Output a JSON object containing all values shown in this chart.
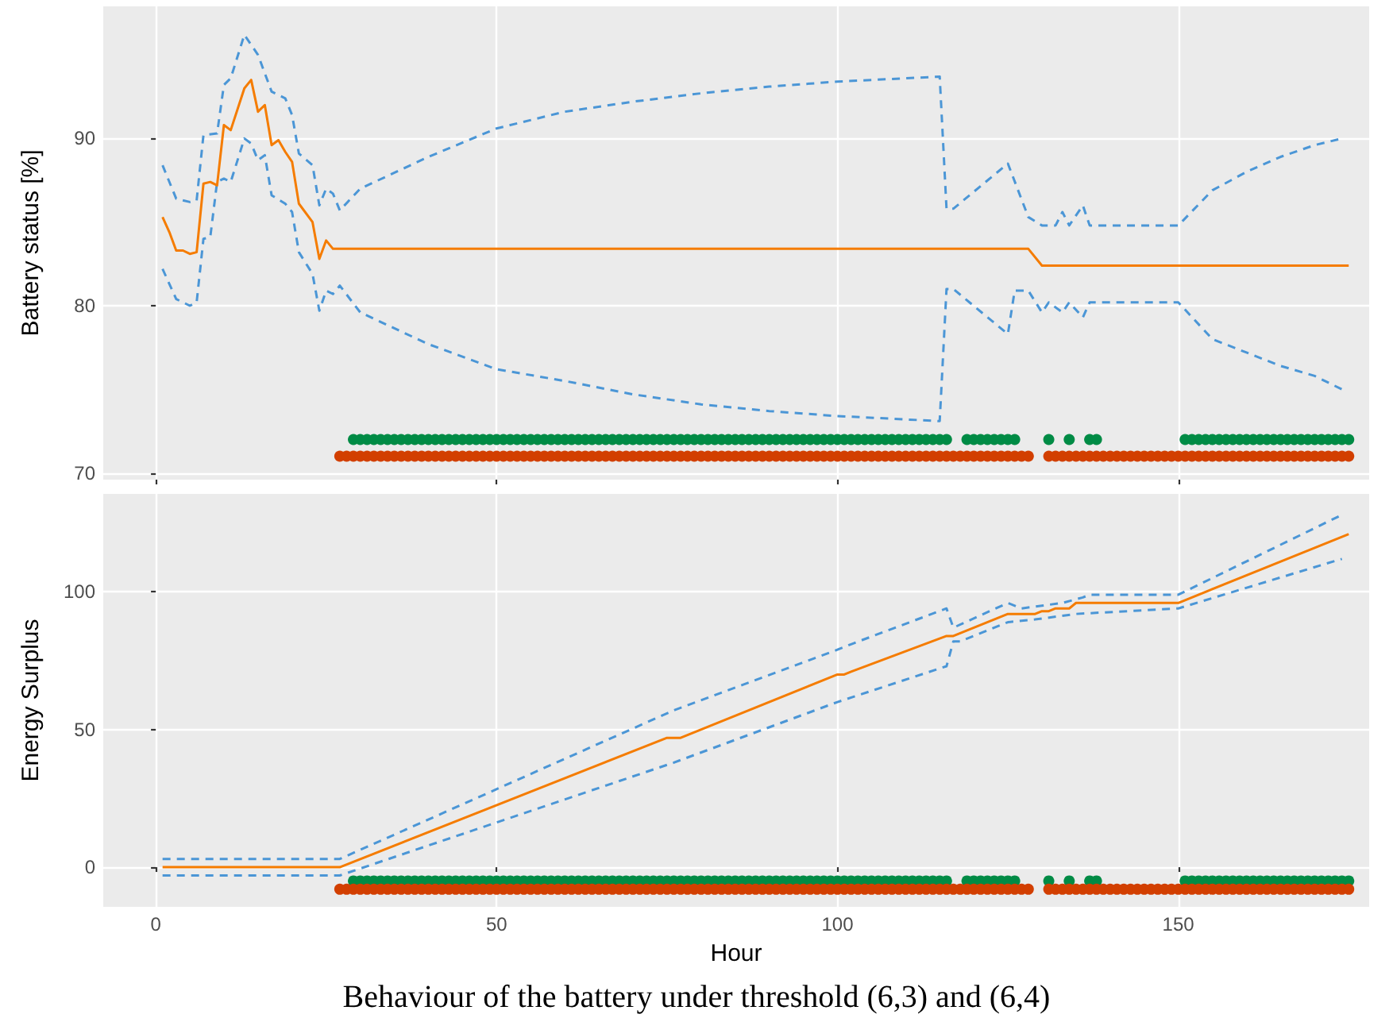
{
  "chart_data": [
    {
      "type": "line",
      "ylabel": "Battery status [%]",
      "xlim": [
        -7.7,
        178
      ],
      "ylim": [
        69.6,
        97.9
      ],
      "xticks": [
        {
          "value": 0,
          "label": null
        },
        {
          "value": 50,
          "label": null
        },
        {
          "value": 100,
          "label": null
        },
        {
          "value": 150,
          "label": null
        }
      ],
      "yticks": [
        70,
        80,
        90
      ],
      "tick_labels": "y",
      "grid": true,
      "series": [
        {
          "color": "#4b96d6",
          "line_style": "dashed",
          "x": [
            1,
            3,
            5,
            6,
            7,
            9,
            10,
            11,
            13,
            15,
            17,
            19,
            20,
            21,
            23,
            24,
            25,
            26,
            27,
            30,
            40,
            50,
            60,
            70,
            80,
            90,
            100,
            110,
            115,
            116,
            117,
            125,
            128,
            130,
            132,
            133,
            134,
            136,
            137,
            150,
            155,
            160,
            165,
            170,
            174
          ],
          "values": [
            88.4,
            86.4,
            86.2,
            86.3,
            90.2,
            90.3,
            93.2,
            93.6,
            96.2,
            95.0,
            92.8,
            92.4,
            91.4,
            89.1,
            88.4,
            86.0,
            87.0,
            86.7,
            85.7,
            87.0,
            88.9,
            90.6,
            91.6,
            92.2,
            92.7,
            93.1,
            93.4,
            93.6,
            93.7,
            85.8,
            85.8,
            88.5,
            85.3,
            84.8,
            84.8,
            85.6,
            84.8,
            86.0,
            84.8,
            84.8,
            86.9,
            88.0,
            88.9,
            89.6,
            90.0
          ]
        },
        {
          "color": "#4b96d6",
          "line_style": "dashed",
          "x": [
            1,
            3,
            5,
            6,
            7,
            8,
            9,
            10,
            11,
            13,
            14,
            15,
            16,
            17,
            19,
            20,
            21,
            23,
            24,
            25,
            26,
            27,
            30,
            40,
            50,
            60,
            70,
            80,
            90,
            100,
            110,
            115,
            116,
            117,
            125,
            126,
            128,
            130,
            131,
            133,
            134,
            136,
            137,
            150,
            155,
            160,
            165,
            170,
            174
          ],
          "values": [
            82.2,
            80.4,
            80.0,
            80.2,
            84.0,
            84.1,
            87.4,
            87.6,
            87.4,
            90.0,
            89.7,
            88.7,
            89.0,
            86.6,
            86.1,
            85.6,
            83.2,
            81.9,
            79.7,
            80.9,
            80.7,
            81.2,
            79.6,
            77.7,
            76.2,
            75.5,
            74.7,
            74.1,
            73.7,
            73.4,
            73.2,
            73.1,
            81.0,
            81.0,
            78.3,
            80.9,
            80.9,
            79.6,
            80.2,
            79.6,
            80.2,
            79.3,
            80.2,
            80.2,
            78.0,
            77.2,
            76.4,
            75.8,
            75.0
          ]
        },
        {
          "color": "#f57c00",
          "line_style": "solid",
          "x": [
            1,
            2,
            3,
            4,
            5,
            6,
            7,
            8,
            9,
            10,
            11,
            13,
            14,
            15,
            16,
            17,
            18,
            19,
            20,
            21,
            23,
            24,
            25,
            26,
            128,
            130,
            175
          ],
          "values": [
            85.3,
            84.4,
            83.3,
            83.3,
            83.1,
            83.2,
            87.3,
            87.4,
            87.2,
            90.8,
            90.5,
            93.0,
            93.5,
            91.6,
            92.0,
            89.6,
            89.9,
            89.2,
            88.6,
            86.1,
            85.0,
            82.8,
            83.9,
            83.4,
            83.4,
            82.4,
            82.4
          ]
        },
        {
          "type": "scatter",
          "marker": "circle",
          "color": "#008b45",
          "x": [
            29,
            30,
            31,
            32,
            33,
            34,
            35,
            36,
            37,
            38,
            39,
            40,
            41,
            42,
            43,
            44,
            45,
            46,
            47,
            48,
            49,
            50,
            51,
            52,
            53,
            54,
            55,
            56,
            57,
            58,
            59,
            60,
            61,
            62,
            63,
            64,
            65,
            66,
            67,
            68,
            69,
            70,
            71,
            72,
            73,
            74,
            75,
            76,
            77,
            78,
            79,
            80,
            81,
            82,
            83,
            84,
            85,
            86,
            87,
            88,
            89,
            90,
            91,
            92,
            93,
            94,
            95,
            96,
            97,
            98,
            99,
            100,
            101,
            102,
            103,
            104,
            105,
            106,
            107,
            108,
            109,
            110,
            111,
            112,
            113,
            114,
            115,
            116,
            119,
            120,
            121,
            122,
            123,
            124,
            125,
            126,
            131,
            134,
            137,
            138,
            151,
            152,
            153,
            154,
            155,
            156,
            157,
            158,
            159,
            160,
            161,
            162,
            163,
            164,
            165,
            166,
            167,
            168,
            169,
            170,
            171,
            172,
            173,
            174,
            175
          ],
          "values": [
            72,
            72,
            72,
            72,
            72,
            72,
            72,
            72,
            72,
            72,
            72,
            72,
            72,
            72,
            72,
            72,
            72,
            72,
            72,
            72,
            72,
            72,
            72,
            72,
            72,
            72,
            72,
            72,
            72,
            72,
            72,
            72,
            72,
            72,
            72,
            72,
            72,
            72,
            72,
            72,
            72,
            72,
            72,
            72,
            72,
            72,
            72,
            72,
            72,
            72,
            72,
            72,
            72,
            72,
            72,
            72,
            72,
            72,
            72,
            72,
            72,
            72,
            72,
            72,
            72,
            72,
            72,
            72,
            72,
            72,
            72,
            72,
            72,
            72,
            72,
            72,
            72,
            72,
            72,
            72,
            72,
            72,
            72,
            72,
            72,
            72,
            72,
            72,
            72,
            72,
            72,
            72,
            72,
            72,
            72,
            72,
            72,
            72,
            72,
            72,
            72,
            72,
            72,
            72,
            72,
            72,
            72,
            72,
            72,
            72,
            72,
            72,
            72,
            72,
            72,
            72,
            72,
            72,
            72,
            72,
            72,
            72,
            72,
            72,
            72
          ]
        },
        {
          "type": "scatter",
          "marker": "circle",
          "color": "#d23f00",
          "x": [
            27,
            28,
            29,
            30,
            31,
            32,
            33,
            34,
            35,
            36,
            37,
            38,
            39,
            40,
            41,
            42,
            43,
            44,
            45,
            46,
            47,
            48,
            49,
            50,
            51,
            52,
            53,
            54,
            55,
            56,
            57,
            58,
            59,
            60,
            61,
            62,
            63,
            64,
            65,
            66,
            67,
            68,
            69,
            70,
            71,
            72,
            73,
            74,
            75,
            76,
            77,
            78,
            79,
            80,
            81,
            82,
            83,
            84,
            85,
            86,
            87,
            88,
            89,
            90,
            91,
            92,
            93,
            94,
            95,
            96,
            97,
            98,
            99,
            100,
            101,
            102,
            103,
            104,
            105,
            106,
            107,
            108,
            109,
            110,
            111,
            112,
            113,
            114,
            115,
            116,
            117,
            118,
            119,
            120,
            121,
            122,
            123,
            124,
            125,
            126,
            127,
            128,
            131,
            132,
            133,
            134,
            135,
            136,
            137,
            138,
            139,
            140,
            141,
            142,
            143,
            144,
            145,
            146,
            147,
            148,
            149,
            150,
            151,
            152,
            153,
            154,
            155,
            156,
            157,
            158,
            159,
            160,
            161,
            162,
            163,
            164,
            165,
            166,
            167,
            168,
            169,
            170,
            171,
            172,
            173,
            174,
            175
          ],
          "values": [
            71,
            71,
            71,
            71,
            71,
            71,
            71,
            71,
            71,
            71,
            71,
            71,
            71,
            71,
            71,
            71,
            71,
            71,
            71,
            71,
            71,
            71,
            71,
            71,
            71,
            71,
            71,
            71,
            71,
            71,
            71,
            71,
            71,
            71,
            71,
            71,
            71,
            71,
            71,
            71,
            71,
            71,
            71,
            71,
            71,
            71,
            71,
            71,
            71,
            71,
            71,
            71,
            71,
            71,
            71,
            71,
            71,
            71,
            71,
            71,
            71,
            71,
            71,
            71,
            71,
            71,
            71,
            71,
            71,
            71,
            71,
            71,
            71,
            71,
            71,
            71,
            71,
            71,
            71,
            71,
            71,
            71,
            71,
            71,
            71,
            71,
            71,
            71,
            71,
            71,
            71,
            71,
            71,
            71,
            71,
            71,
            71,
            71,
            71,
            71,
            71,
            71,
            71,
            71,
            71,
            71,
            71,
            71,
            71,
            71,
            71,
            71,
            71,
            71,
            71,
            71,
            71,
            71,
            71,
            71,
            71,
            71,
            71,
            71,
            71,
            71,
            71,
            71,
            71,
            71,
            71,
            71,
            71,
            71,
            71,
            71,
            71,
            71,
            71,
            71,
            71,
            71,
            71,
            71,
            71,
            71,
            71
          ]
        }
      ]
    },
    {
      "type": "line",
      "xlabel": "Hour",
      "ylabel": "Energy Surplus",
      "xlim": [
        -7.7,
        178
      ],
      "ylim": [
        -14.4,
        135.6
      ],
      "xticks": [
        0,
        50,
        100,
        150
      ],
      "yticks": [
        0,
        50,
        100
      ],
      "grid": true,
      "annotations": [
        "Behaviour of the battery under threshold (6,3) and (6,4)"
      ],
      "series": [
        {
          "color": "#4b96d6",
          "line_style": "dashed",
          "x": [
            1,
            27,
            76,
            100,
            102,
            116,
            117,
            125,
            127,
            130,
            133,
            136,
            137,
            150,
            174
          ],
          "values": [
            3,
            3,
            57,
            79,
            81,
            94,
            87,
            96,
            94,
            95,
            96,
            98,
            99,
            99,
            128
          ]
        },
        {
          "color": "#4b96d6",
          "line_style": "dashed",
          "x": [
            1,
            27,
            76,
            100,
            116,
            117,
            118,
            125,
            129,
            135,
            150,
            174
          ],
          "values": [
            -3,
            -3,
            38,
            60,
            73,
            82,
            82,
            89,
            90,
            92,
            94,
            112
          ]
        },
        {
          "color": "#f57c00",
          "line_style": "solid",
          "x": [
            1,
            27,
            75,
            77,
            100,
            101,
            102,
            116,
            117,
            125,
            129,
            130,
            131,
            132,
            134,
            135,
            150,
            175
          ],
          "values": [
            0,
            0,
            47,
            47,
            70,
            70,
            71,
            84,
            84,
            92,
            92,
            93,
            93,
            94,
            94,
            96,
            96,
            121
          ]
        },
        {
          "type": "scatter",
          "marker": "circle",
          "color": "#008b45",
          "x": [
            29,
            30,
            31,
            32,
            33,
            34,
            35,
            36,
            37,
            38,
            39,
            40,
            41,
            42,
            43,
            44,
            45,
            46,
            47,
            48,
            49,
            50,
            51,
            52,
            53,
            54,
            55,
            56,
            57,
            58,
            59,
            60,
            61,
            62,
            63,
            64,
            65,
            66,
            67,
            68,
            69,
            70,
            71,
            72,
            73,
            74,
            75,
            76,
            77,
            78,
            79,
            80,
            81,
            82,
            83,
            84,
            85,
            86,
            87,
            88,
            89,
            90,
            91,
            92,
            93,
            94,
            95,
            96,
            97,
            98,
            99,
            100,
            101,
            102,
            103,
            104,
            105,
            106,
            107,
            108,
            109,
            110,
            111,
            112,
            113,
            114,
            115,
            116,
            119,
            120,
            121,
            122,
            123,
            124,
            125,
            126,
            131,
            134,
            137,
            138,
            151,
            152,
            153,
            154,
            155,
            156,
            157,
            158,
            159,
            160,
            161,
            162,
            163,
            164,
            165,
            166,
            167,
            168,
            169,
            170,
            171,
            172,
            173,
            174,
            175
          ],
          "values": [
            -5,
            -5,
            -5,
            -5,
            -5,
            -5,
            -5,
            -5,
            -5,
            -5,
            -5,
            -5,
            -5,
            -5,
            -5,
            -5,
            -5,
            -5,
            -5,
            -5,
            -5,
            -5,
            -5,
            -5,
            -5,
            -5,
            -5,
            -5,
            -5,
            -5,
            -5,
            -5,
            -5,
            -5,
            -5,
            -5,
            -5,
            -5,
            -5,
            -5,
            -5,
            -5,
            -5,
            -5,
            -5,
            -5,
            -5,
            -5,
            -5,
            -5,
            -5,
            -5,
            -5,
            -5,
            -5,
            -5,
            -5,
            -5,
            -5,
            -5,
            -5,
            -5,
            -5,
            -5,
            -5,
            -5,
            -5,
            -5,
            -5,
            -5,
            -5,
            -5,
            -5,
            -5,
            -5,
            -5,
            -5,
            -5,
            -5,
            -5,
            -5,
            -5,
            -5,
            -5,
            -5,
            -5,
            -5,
            -5,
            -5,
            -5,
            -5,
            -5,
            -5,
            -5,
            -5,
            -5,
            -5,
            -5,
            -5,
            -5,
            -5,
            -5,
            -5,
            -5,
            -5,
            -5,
            -5,
            -5,
            -5,
            -5,
            -5,
            -5,
            -5,
            -5,
            -5,
            -5,
            -5,
            -5,
            -5,
            -5,
            -5,
            -5,
            -5,
            -5,
            -5
          ]
        },
        {
          "type": "scatter",
          "marker": "circle",
          "color": "#d23f00",
          "x": [
            27,
            28,
            29,
            30,
            31,
            32,
            33,
            34,
            35,
            36,
            37,
            38,
            39,
            40,
            41,
            42,
            43,
            44,
            45,
            46,
            47,
            48,
            49,
            50,
            51,
            52,
            53,
            54,
            55,
            56,
            57,
            58,
            59,
            60,
            61,
            62,
            63,
            64,
            65,
            66,
            67,
            68,
            69,
            70,
            71,
            72,
            73,
            74,
            75,
            76,
            77,
            78,
            79,
            80,
            81,
            82,
            83,
            84,
            85,
            86,
            87,
            88,
            89,
            90,
            91,
            92,
            93,
            94,
            95,
            96,
            97,
            98,
            99,
            100,
            101,
            102,
            103,
            104,
            105,
            106,
            107,
            108,
            109,
            110,
            111,
            112,
            113,
            114,
            115,
            116,
            117,
            118,
            119,
            120,
            121,
            122,
            123,
            124,
            125,
            126,
            127,
            128,
            131,
            132,
            133,
            134,
            135,
            136,
            137,
            138,
            139,
            140,
            141,
            142,
            143,
            144,
            145,
            146,
            147,
            148,
            149,
            150,
            151,
            152,
            153,
            154,
            155,
            156,
            157,
            158,
            159,
            160,
            161,
            162,
            163,
            164,
            165,
            166,
            167,
            168,
            169,
            170,
            171,
            172,
            173,
            174,
            175
          ],
          "values": [
            -8,
            -8,
            -8,
            -8,
            -8,
            -8,
            -8,
            -8,
            -8,
            -8,
            -8,
            -8,
            -8,
            -8,
            -8,
            -8,
            -8,
            -8,
            -8,
            -8,
            -8,
            -8,
            -8,
            -8,
            -8,
            -8,
            -8,
            -8,
            -8,
            -8,
            -8,
            -8,
            -8,
            -8,
            -8,
            -8,
            -8,
            -8,
            -8,
            -8,
            -8,
            -8,
            -8,
            -8,
            -8,
            -8,
            -8,
            -8,
            -8,
            -8,
            -8,
            -8,
            -8,
            -8,
            -8,
            -8,
            -8,
            -8,
            -8,
            -8,
            -8,
            -8,
            -8,
            -8,
            -8,
            -8,
            -8,
            -8,
            -8,
            -8,
            -8,
            -8,
            -8,
            -8,
            -8,
            -8,
            -8,
            -8,
            -8,
            -8,
            -8,
            -8,
            -8,
            -8,
            -8,
            -8,
            -8,
            -8,
            -8,
            -8,
            -8,
            -8,
            -8,
            -8,
            -8,
            -8,
            -8,
            -8,
            -8,
            -8,
            -8,
            -8,
            -8,
            -8,
            -8,
            -8,
            -8,
            -8,
            -8,
            -8,
            -8,
            -8,
            -8,
            -8,
            -8,
            -8,
            -8,
            -8,
            -8,
            -8,
            -8,
            -8,
            -8,
            -8,
            -8,
            -8,
            -8,
            -8,
            -8,
            -8,
            -8,
            -8,
            -8,
            -8,
            -8,
            -8,
            -8,
            -8,
            -8,
            -8,
            -8,
            -8,
            -8,
            -8,
            -8,
            -8,
            -8
          ]
        }
      ]
    }
  ]
}
